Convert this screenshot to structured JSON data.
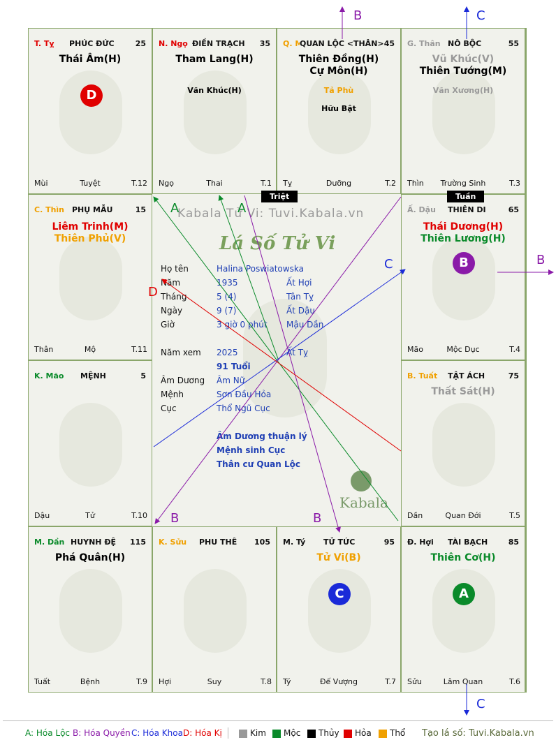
{
  "cells": [
    {
      "id": "ty",
      "stem": "T. Tỵ",
      "stem_color": "#e00000",
      "palace": "PHÚC ĐỨC",
      "age": "25",
      "main": [
        "Thái Âm(H)"
      ],
      "main_colors": [
        "#111"
      ],
      "minor": [],
      "branch": "Mùi",
      "phase": "Tuyệt",
      "tnum": "T.12"
    },
    {
      "id": "ngo",
      "stem": "N. Ngọ",
      "stem_color": "#e00000",
      "palace": "ĐIỀN TRẠCH",
      "age": "35",
      "main": [
        "Tham Lang(H)"
      ],
      "main_colors": [
        "#111"
      ],
      "minor": [
        "Văn Khúc(H)"
      ],
      "minor_colors": [
        "#111"
      ],
      "branch": "Ngọ",
      "phase": "Thai",
      "tnum": "T.1"
    },
    {
      "id": "mui",
      "stem": "Q. Mùi",
      "stem_color": "#f0a000",
      "palace": "QUAN LỘC <THÂN>",
      "age": "45",
      "main": [
        "Thiên Đồng(H)",
        "Cự Môn(H)"
      ],
      "main_colors": [
        "#111",
        "#111"
      ],
      "minor": [
        "Tả Phù",
        "Hữu Bật"
      ],
      "minor_colors": [
        "#f0a000",
        "#111"
      ],
      "branch": "Tỵ",
      "phase": "Dưỡng",
      "tnum": "T.2"
    },
    {
      "id": "than",
      "stem": "G. Thân",
      "stem_color": "#999",
      "palace": "NÔ BỘC",
      "age": "55",
      "main": [
        "Vũ Khúc(V)",
        "Thiên Tướng(M)"
      ],
      "main_colors": [
        "#999",
        "#111"
      ],
      "minor": [
        "Văn Xương(H)"
      ],
      "minor_colors": [
        "#999"
      ],
      "branch": "Thìn",
      "phase": "Trường Sinh",
      "tnum": "T.3"
    },
    {
      "id": "thin",
      "stem": "C. Thìn",
      "stem_color": "#f0a000",
      "palace": "PHỤ MẪU",
      "age": "15",
      "main": [
        "Liêm Trinh(M)",
        "Thiên Phủ(V)"
      ],
      "main_colors": [
        "#e00000",
        "#f0a000"
      ],
      "minor": [],
      "branch": "Thân",
      "phase": "Mộ",
      "tnum": "T.11"
    },
    {
      "id": "dau",
      "stem": "Ấ. Dậu",
      "stem_color": "#999",
      "palace": "THIÊN DI",
      "age": "65",
      "main": [
        "Thái Dương(H)",
        "Thiên Lương(H)"
      ],
      "main_colors": [
        "#e00000",
        "#0a8a2a"
      ],
      "minor": [],
      "branch": "Mão",
      "phase": "Mộc Dục",
      "tnum": "T.4"
    },
    {
      "id": "mao",
      "stem": "K. Mão",
      "stem_color": "#0a8a2a",
      "palace": "MỆNH",
      "age": "5",
      "main": [],
      "main_colors": [],
      "minor": [],
      "branch": "Dậu",
      "phase": "Tử",
      "tnum": "T.10"
    },
    {
      "id": "tuat",
      "stem": "B. Tuất",
      "stem_color": "#f0a000",
      "palace": "TẬT ÁCH",
      "age": "75",
      "main": [
        "Thất Sát(H)"
      ],
      "main_colors": [
        "#999"
      ],
      "minor": [],
      "branch": "Dần",
      "phase": "Quan Đới",
      "tnum": "T.5"
    },
    {
      "id": "dan",
      "stem": "M. Dần",
      "stem_color": "#0a8a2a",
      "palace": "HUYNH ĐỆ",
      "age": "115",
      "main": [
        "Phá Quân(H)"
      ],
      "main_colors": [
        "#111"
      ],
      "minor": [],
      "branch": "Tuất",
      "phase": "Bệnh",
      "tnum": "T.9"
    },
    {
      "id": "suu",
      "stem": "K. Sửu",
      "stem_color": "#f0a000",
      "palace": "PHU THÊ",
      "age": "105",
      "main": [],
      "main_colors": [],
      "minor": [],
      "branch": "Hợi",
      "phase": "Suy",
      "tnum": "T.8"
    },
    {
      "id": "ty2",
      "stem": "M. Tý",
      "stem_color": "#111",
      "palace": "TỬ TỨC",
      "age": "95",
      "main": [
        "Tử Vi(B)"
      ],
      "main_colors": [
        "#f0a000"
      ],
      "minor": [],
      "branch": "Tý",
      "phase": "Đế Vượng",
      "tnum": "T.7"
    },
    {
      "id": "hoi",
      "stem": "Đ. Hợi",
      "stem_color": "#111",
      "palace": "TÀI BẠCH",
      "age": "85",
      "main": [
        "Thiên Cơ(H)"
      ],
      "main_colors": [
        "#0a8a2a"
      ],
      "minor": [],
      "branch": "Sửu",
      "phase": "Lâm Quan",
      "tnum": "T.6"
    }
  ],
  "badges": {
    "triet": "Triệt",
    "tuan": "Tuần"
  },
  "circles": {
    "d": "D",
    "b": "B",
    "c": "C",
    "a": "A"
  },
  "center": {
    "watermark": "Kabala Tử Vi: Tuvi.Kabala.vn",
    "logo_script": "Lá Số Tử Vi",
    "brand": "Kabala",
    "rows": [
      {
        "label": "Họ tên",
        "value": "Halina Poswiatowska",
        "value2": ""
      },
      {
        "label": "Năm",
        "value": "1935",
        "value2": "Ất Hợi"
      },
      {
        "label": "Tháng",
        "value": "5  (4)",
        "value2": "Tân Tỵ"
      },
      {
        "label": "Ngày",
        "value": "9  (7)",
        "value2": "Ất Dậu"
      },
      {
        "label": "Giờ",
        "value": "3 giờ 0 phút",
        "value2": "Mậu Dần"
      }
    ],
    "nam_xem_label": "Năm xem",
    "nam_xem": "2025",
    "nam_xem_can": "Ất Tỵ",
    "tuoi": "91 Tuổi",
    "rows2": [
      {
        "label": "Âm Dương",
        "value": "Âm Nữ"
      },
      {
        "label": "Mệnh",
        "value": "Sơn Đầu Hỏa"
      },
      {
        "label": "Cục",
        "value": "Thổ Ngũ Cục"
      }
    ],
    "notes": [
      "Âm Dương thuận lý",
      "Mệnh sinh Cục",
      "Thân cư Quan Lộc"
    ]
  },
  "arrow_labels": {
    "a": "A",
    "b": "B",
    "c": "C",
    "d": "D"
  },
  "legend": {
    "a": "A: Hóa Lộc",
    "b": "B: Hóa Quyền",
    "c": "C: Hóa Khoa",
    "d": "D: Hóa Kị",
    "kim": "Kim",
    "moc": "Mộc",
    "thuy": "Thủy",
    "hoa": "Hỏa",
    "tho": "Thổ",
    "credit": "Tạo lá số: Tuvi.Kabala.vn"
  },
  "colors": {
    "green": "#0a8a2a",
    "purple": "#8a1aa8",
    "blue": "#1a2ad8",
    "red": "#e00000",
    "orange": "#f0a000",
    "grey": "#999999",
    "black": "#000000",
    "border": "#8aa66a"
  }
}
